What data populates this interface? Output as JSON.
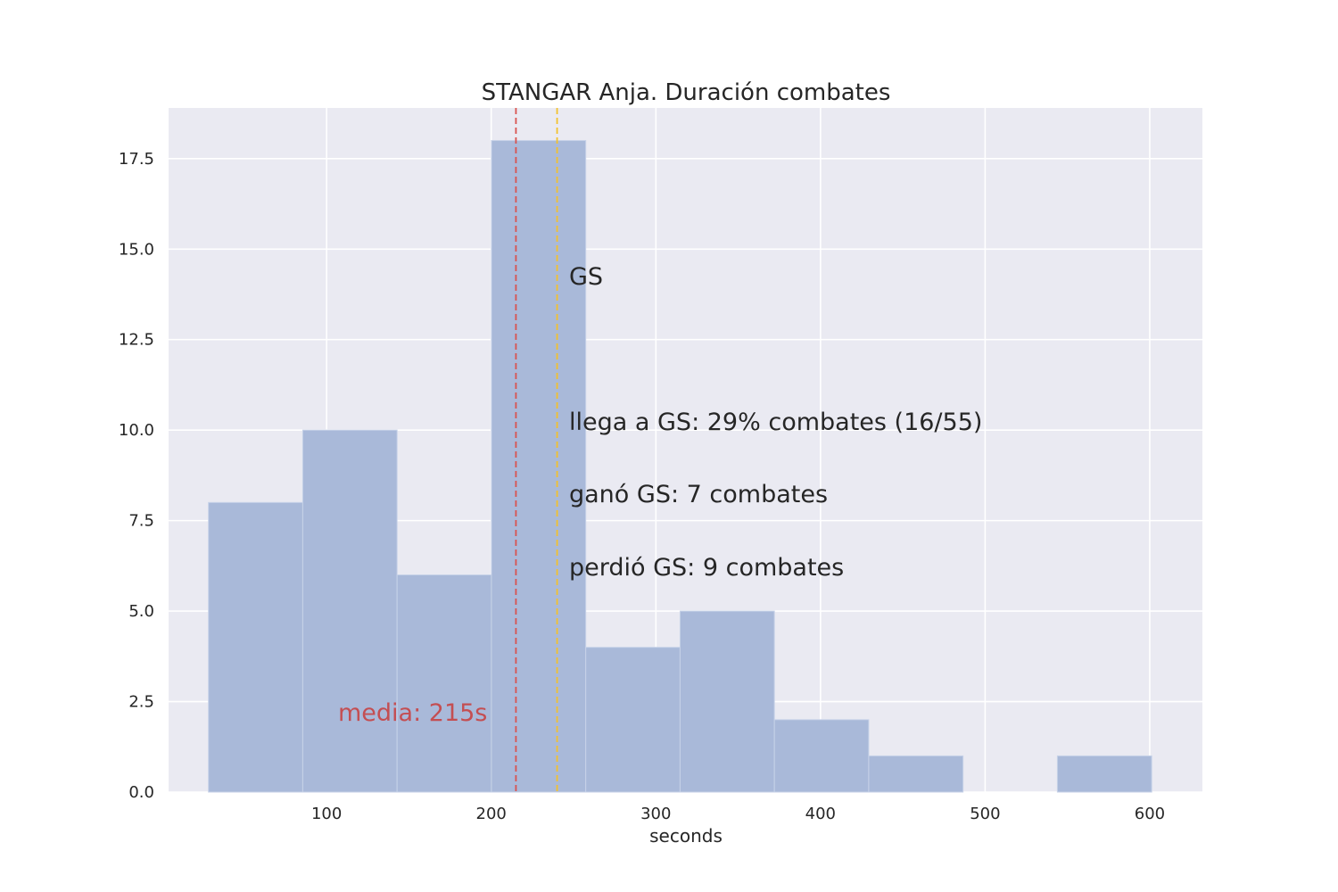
{
  "chart_data": {
    "type": "bar",
    "title": "STANGAR Anja. Duración combates",
    "xlabel": "seconds",
    "ylabel": "",
    "xlim": [
      4,
      632
    ],
    "ylim": [
      0,
      18.9
    ],
    "x_ticks": [
      100,
      200,
      300,
      400,
      500,
      600
    ],
    "y_ticks": [
      "0.0",
      "2.5",
      "5.0",
      "7.5",
      "10.0",
      "12.5",
      "15.0",
      "17.5"
    ],
    "bins": [
      {
        "x0": 28.2,
        "x1": 85.5,
        "count": 8
      },
      {
        "x0": 85.5,
        "x1": 142.8,
        "count": 10
      },
      {
        "x0": 142.8,
        "x1": 200.1,
        "count": 6
      },
      {
        "x0": 200.1,
        "x1": 257.4,
        "count": 18
      },
      {
        "x0": 257.4,
        "x1": 314.7,
        "count": 4
      },
      {
        "x0": 314.7,
        "x1": 372.0,
        "count": 5
      },
      {
        "x0": 372.0,
        "x1": 429.3,
        "count": 2
      },
      {
        "x0": 429.3,
        "x1": 486.6,
        "count": 1
      },
      {
        "x0": 486.6,
        "x1": 543.9,
        "count": 0
      },
      {
        "x0": 543.9,
        "x1": 601.2,
        "count": 1
      }
    ],
    "reference_lines": [
      {
        "x": 215,
        "color": "#d9534f",
        "style": "dashed"
      },
      {
        "x": 240,
        "color": "#f2c12e",
        "style": "dashed"
      }
    ],
    "annotations": {
      "gs": "GS",
      "llega": "llega a GS: 29% combates (16/55)",
      "gano": "ganó GS: 7 combates",
      "perdio": "perdió GS: 9 combates",
      "media": "media: 215s"
    },
    "grid": true,
    "colors": {
      "bar": "#a9b9d9",
      "bar_edge": "#c7d2e8",
      "background": "#eaeaf2",
      "grid": "#ffffff",
      "mean_text": "#c44e52"
    }
  }
}
